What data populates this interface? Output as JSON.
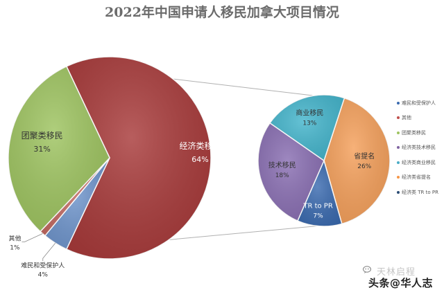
{
  "chart_data": {
    "type": "pie",
    "title": "2022年中国申请人移民加拿大项目情况",
    "main_pie": {
      "slices": [
        {
          "label": "经济类移民",
          "value": 64,
          "value_label": "64%",
          "color": "#a83a3a"
        },
        {
          "label": "难民和受保护人",
          "value": 4,
          "value_label": "4%",
          "color": "#6f95cc"
        },
        {
          "label": "其他",
          "value": 1,
          "value_label": "1%",
          "color": "#c46a62"
        },
        {
          "label": "团聚类移民",
          "value": 31,
          "value_label": "31%",
          "color": "#9ec460"
        }
      ]
    },
    "secondary_pie": {
      "parent": "经济类移民",
      "slices": [
        {
          "label": "省提名",
          "value": 26,
          "value_label": "26%",
          "color": "#f5a05b"
        },
        {
          "label": "TR to PR",
          "value": 7,
          "value_label": "7%",
          "color": "#3b6bb0"
        },
        {
          "label": "技术移民",
          "value": 18,
          "value_label": "18%",
          "color": "#8a6fb3"
        },
        {
          "label": "商业移民",
          "value": 13,
          "value_label": "13%",
          "color": "#44b5cc"
        }
      ]
    },
    "legend": [
      {
        "label": "难民和受保护人",
        "color": "#3b6bb0"
      },
      {
        "label": "其他",
        "color": "#c0504d"
      },
      {
        "label": "团聚类移民",
        "color": "#9ec460"
      },
      {
        "label": "经济类技术移民",
        "color": "#8064a2"
      },
      {
        "label": "经济类商业移民",
        "color": "#4bacc6"
      },
      {
        "label": "经济类省提名",
        "color": "#f79646"
      },
      {
        "label": "经济类 TR to PR",
        "color": "#2c4d75"
      }
    ],
    "legend_position": "right"
  },
  "watermark": {
    "faint_text": "天林启程",
    "main_text": "头条@华人志"
  }
}
